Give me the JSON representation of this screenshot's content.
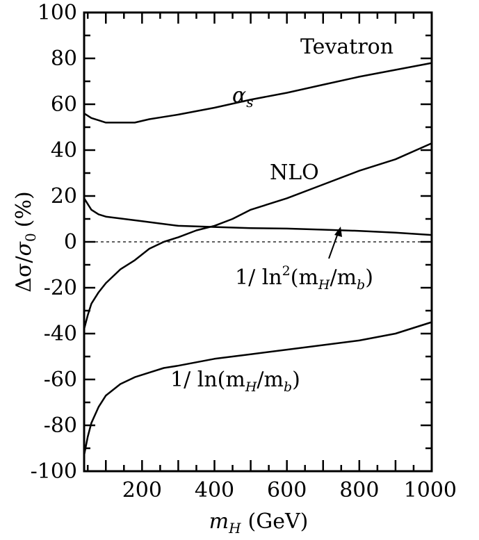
{
  "chart_data": {
    "type": "line",
    "xlabel_var": "m",
    "xlabel_sub": "H",
    "xlabel_unit": "(GeV)",
    "ylabel_delta": "Δσ",
    "ylabel_slash": "/",
    "ylabel_sigma": "σ",
    "ylabel_sub": "0",
    "ylabel_unit": "(%)",
    "xlim": [
      40,
      1000
    ],
    "ylim": [
      -100,
      100
    ],
    "xticks": [
      200,
      400,
      600,
      800,
      1000
    ],
    "yticks": [
      100,
      80,
      60,
      40,
      20,
      0,
      -20,
      -40,
      -60,
      -80,
      -100
    ],
    "ytick_labels": [
      "100",
      "80",
      "60",
      "40",
      "20",
      "0",
      "-20",
      "-40",
      "-60",
      "-80",
      "-100"
    ],
    "xtick_labels": [
      "200",
      "400",
      "600",
      "800",
      "1000"
    ],
    "zero_line": "dashed",
    "grid": false,
    "annotations": {
      "tevatron": "Tevatron",
      "alpha_s": "α",
      "alpha_s_sub": "s",
      "nlo": "NLO",
      "inv_ln2_prefix": "1/ ln",
      "inv_ln2_sup": "2",
      "inv_ln2_suffix": "(m",
      "inv_ln2_sub1": "H",
      "inv_ln2_mid": "/m",
      "inv_ln2_sub2": "b",
      "inv_ln2_close": ")",
      "inv_ln_prefix": "1/ ln(m",
      "inv_ln_sub1": "H",
      "inv_ln_mid": "/m",
      "inv_ln_sub2": "b",
      "inv_ln_close": ")"
    },
    "series": [
      {
        "key": "alpha_s",
        "x": [
          40,
          60,
          80,
          100,
          140,
          180,
          220,
          260,
          300,
          400,
          500,
          600,
          700,
          800,
          900,
          1000
        ],
        "y": [
          56,
          54,
          53,
          52,
          52,
          52,
          53.5,
          54.5,
          55.5,
          58.5,
          62,
          65,
          68.5,
          72,
          75,
          78
        ]
      },
      {
        "key": "nlo",
        "x": [
          40,
          50,
          60,
          80,
          100,
          140,
          180,
          220,
          260,
          300,
          350,
          400,
          450,
          500,
          600,
          700,
          800,
          900,
          1000
        ],
        "y": [
          -38,
          -32,
          -27,
          -22,
          -18,
          -12,
          -8,
          -3,
          0,
          2,
          5,
          7,
          10,
          14,
          19,
          25,
          31,
          36,
          43
        ]
      },
      {
        "key": "inv_ln2",
        "x": [
          40,
          60,
          80,
          100,
          150,
          200,
          250,
          300,
          400,
          500,
          600,
          700,
          800,
          900,
          1000
        ],
        "y": [
          19,
          14,
          12,
          11,
          10,
          9,
          8,
          7,
          6.5,
          6,
          5.8,
          5.3,
          4.8,
          4,
          3
        ]
      },
      {
        "key": "inv_ln",
        "x": [
          40,
          50,
          60,
          80,
          100,
          140,
          180,
          220,
          260,
          300,
          400,
          500,
          600,
          700,
          800,
          900,
          1000
        ],
        "y": [
          -93,
          -85,
          -79,
          -72,
          -67,
          -62,
          -59,
          -57,
          -55,
          -54,
          -51,
          -49,
          -47,
          -45,
          -43,
          -40,
          -35
        ]
      }
    ]
  }
}
